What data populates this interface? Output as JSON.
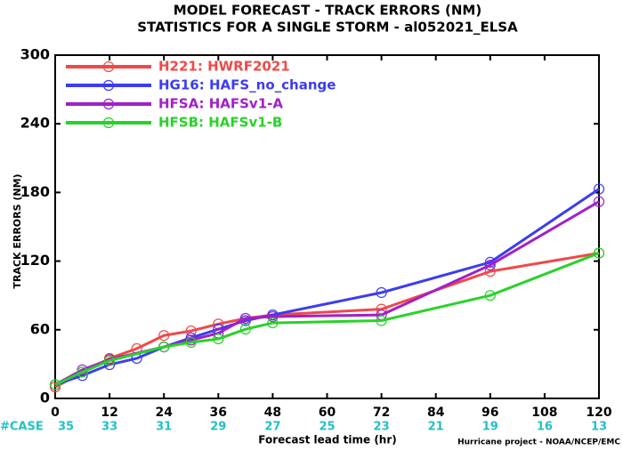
{
  "chart_data": {
    "type": "line",
    "title": "MODEL FORECAST - TRACK ERRORS (NM)",
    "subtitle": "STATISTICS FOR A SINGLE STORM - al052021_ELSA",
    "x_label": "Forecast lead time (hr)",
    "y_label": "TRACK ERRORS (NM)",
    "footer": "Hurricane project - NOAA/NCEP/EMC",
    "case_label": "#CASE",
    "cases": [
      35,
      33,
      31,
      29,
      27,
      25,
      23,
      21,
      19,
      16,
      13
    ],
    "xlim": [
      0,
      120
    ],
    "xticks": [
      0,
      12,
      24,
      36,
      48,
      60,
      72,
      84,
      96,
      108,
      120
    ],
    "ylim": [
      0,
      300
    ],
    "yticks": [
      0,
      60,
      120,
      180,
      240,
      300
    ],
    "legend": "upper left",
    "series": [
      {
        "name": "H221: HWRF2021",
        "color": "#f04848",
        "x": [
          0,
          12,
          18,
          24,
          30,
          36,
          42,
          48,
          72,
          96,
          120
        ],
        "values": [
          10,
          35,
          43.5,
          55,
          59,
          65,
          70,
          73,
          78,
          111,
          127
        ]
      },
      {
        "name": "HG16: HAFS_no_change",
        "color": "#3c3cf0",
        "x": [
          0,
          6,
          12,
          18,
          24,
          30,
          36,
          42,
          48,
          72,
          96,
          120
        ],
        "values": [
          12,
          20,
          29.5,
          35,
          45,
          53,
          60.5,
          68,
          73,
          92.5,
          119,
          183
        ]
      },
      {
        "name": "HFSA: HAFSv1-A",
        "color": "#a020c8",
        "x": [
          0,
          6,
          12,
          24,
          30,
          36,
          42,
          48,
          72,
          96,
          120
        ],
        "values": [
          12,
          25,
          34,
          45,
          51,
          57,
          70,
          71.5,
          73,
          116.5,
          172
        ]
      },
      {
        "name": "HFSB: HAFSv1-B",
        "color": "#28d228",
        "x": [
          0,
          6,
          12,
          24,
          30,
          36,
          42,
          48,
          72,
          96,
          120
        ],
        "values": [
          12,
          23,
          33,
          45,
          49,
          52,
          60.5,
          66,
          68,
          90,
          127
        ]
      }
    ]
  }
}
